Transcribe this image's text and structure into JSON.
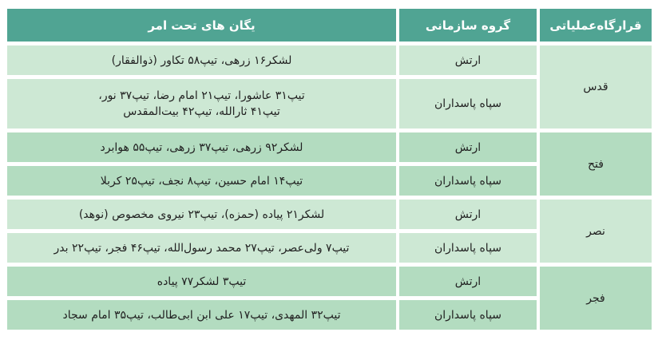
{
  "header": {
    "hq": "قرارگاه‌عملیاتی",
    "group": "گروه سازمانی",
    "units": "یگان های تحت امر"
  },
  "colors": {
    "header": "#50a493",
    "light_row": "#cde8d4",
    "dark_row": "#b3dcc0"
  },
  "rows": [
    {
      "hq": "قدس",
      "shade": "light",
      "entries": [
        {
          "group": "ارتش",
          "units": "لشکر۱۶ زرهی، تیپ۵۸ تکاور (ذوالفقار)"
        },
        {
          "group": "سپاه پاسداران",
          "units": "تیپ۳۱ عاشورا، تیپ۲۱ امام رضا، تیپ۳۷ نور، تیپ۴۱ ثارالله، تیپ۴۲ بیت‌المقدس"
        }
      ]
    },
    {
      "hq": "فتح",
      "shade": "dark",
      "entries": [
        {
          "group": "ارتش",
          "units": "لشکر۹۲ زرهی، تیپ۳۷ زرهی، تیپ۵۵ هوابرد"
        },
        {
          "group": "سپاه پاسداران",
          "units": "تیپ۱۴ امام حسین، تیپ۸ نجف، تیپ۲۵ کربلا"
        }
      ]
    },
    {
      "hq": "نصر",
      "shade": "light",
      "entries": [
        {
          "group": "ارتش",
          "units": "لشکر۲۱ پیاده (حمزه)، تیپ۲۳ نیروی مخصوص (نوهد)"
        },
        {
          "group": "سپاه پاسداران",
          "units": "تیپ۷ ولی‌عصر، تیپ۲۷ محمد رسول‌الله، تیپ۴۶ فجر، تیپ۲۲ بدر"
        }
      ]
    },
    {
      "hq": "فجر",
      "shade": "dark",
      "entries": [
        {
          "group": "ارتش",
          "units": "تیپ۳ لشکر۷۷ پیاده"
        },
        {
          "group": "سپاه پاسداران",
          "units": "تیپ۳۲ المهدی، تیپ۱۷ علی ابن ابی‌طالب، تیپ۳۵ امام سجاد"
        }
      ]
    }
  ]
}
